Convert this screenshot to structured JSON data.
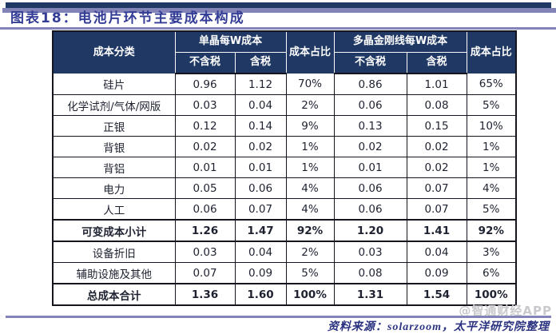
{
  "page": {
    "title": "图表18：电池片环节主要成本构成",
    "source": "资料来源：solarzoom，太平洋研究院整理",
    "watermark": "@智通财经APP"
  },
  "colors": {
    "header_bg": "#1F3864",
    "accent_bar": "#8283B6",
    "title_text": "#333D96",
    "source_text": "#2B3380",
    "table_border": "#15151F",
    "cell_text": "#1E2230",
    "watermark_text": "#C9C9CD"
  },
  "table": {
    "headers": {
      "cost_category": "成本分类",
      "mono_group": "单晶每W成本",
      "poly_group": "多晶金刚线每W成本",
      "cost_share": "成本占比",
      "ex_tax": "不含税",
      "inc_tax": "含税"
    }
  },
  "chart_data": {
    "type": "table",
    "title": "图表18：电池片环节主要成本构成",
    "columns": [
      "成本分类",
      "单晶每W成本 不含税",
      "单晶每W成本 含税",
      "成本占比",
      "多晶金刚线每W成本 不含税",
      "多晶金刚线每W成本 含税",
      "成本占比"
    ],
    "rows": [
      {
        "label": "硅片",
        "values": [
          "0.96",
          "1.12",
          "70%",
          "0.86",
          "1.01",
          "65%"
        ],
        "bold": false
      },
      {
        "label": "化学试剂/气体/网版",
        "values": [
          "0.03",
          "0.04",
          "2%",
          "0.06",
          "0.08",
          "5%"
        ],
        "bold": false
      },
      {
        "label": "正银",
        "values": [
          "0.12",
          "0.14",
          "9%",
          "0.13",
          "0.15",
          "10%"
        ],
        "bold": false
      },
      {
        "label": "背银",
        "values": [
          "0.02",
          "0.02",
          "1%",
          "0.02",
          "0.02",
          "1%"
        ],
        "bold": false
      },
      {
        "label": "背铝",
        "values": [
          "0.01",
          "0.01",
          "1%",
          "0.01",
          "0.02",
          "1%"
        ],
        "bold": false
      },
      {
        "label": "电力",
        "values": [
          "0.05",
          "0.06",
          "4%",
          "0.06",
          "0.07",
          "4%"
        ],
        "bold": false
      },
      {
        "label": "人工",
        "values": [
          "0.06",
          "0.07",
          "4%",
          "0.06",
          "0.07",
          "5%"
        ],
        "bold": false
      },
      {
        "label": "可变成本小计",
        "values": [
          "1.26",
          "1.47",
          "92%",
          "1.20",
          "1.41",
          "92%"
        ],
        "bold": true
      },
      {
        "label": "设备折旧",
        "values": [
          "0.03",
          "0.04",
          "2%",
          "0.03",
          "0.04",
          "3%"
        ],
        "bold": false
      },
      {
        "label": "辅助设施及其他",
        "values": [
          "0.07",
          "0.09",
          "5%",
          "0.08",
          "0.09",
          "6%"
        ],
        "bold": false
      },
      {
        "label": "总成本合计",
        "values": [
          "1.36",
          "1.60",
          "100%",
          "1.31",
          "1.54",
          "100%"
        ],
        "bold": true
      }
    ]
  }
}
